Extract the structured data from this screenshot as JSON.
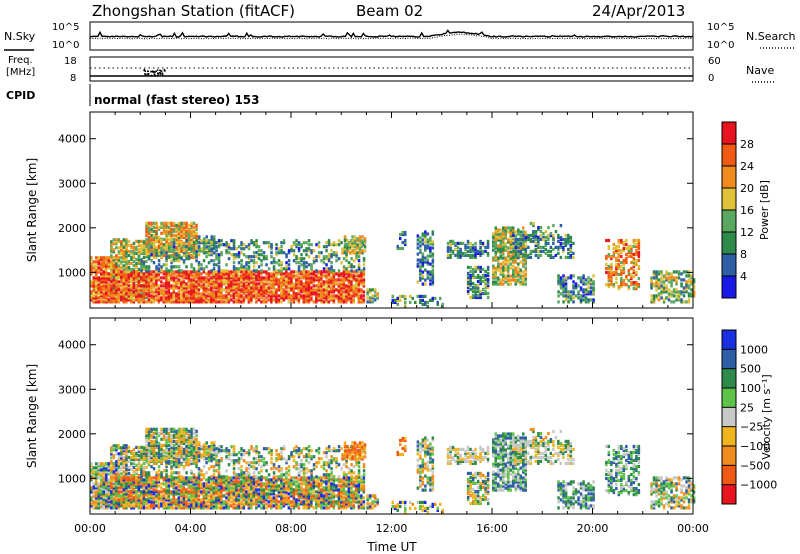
{
  "header": {
    "station": "Zhongshan Station (fitACF)",
    "beam": "Beam 02",
    "date": "24/Apr/2013"
  },
  "noise_panel": {
    "left_label": "N.Sky",
    "right_label": "N.Search",
    "left_top_tick": "10^5",
    "left_bottom_tick": "10^0",
    "right_top_tick": "10^5",
    "right_bottom_tick": "10^0"
  },
  "freq_panel": {
    "left_label_line1": "Freq.",
    "left_label_line2": "[MHz]",
    "right_label": "Nave",
    "left_top_tick": "18",
    "left_bottom_tick": "8",
    "right_top_tick": "60",
    "right_bottom_tick": "0"
  },
  "cpid_panel": {
    "label": "CPID",
    "text": "normal (fast stereo) 153"
  },
  "colors": {
    "blue": "#1a2fe0",
    "teal_blue": "#2e5fa6",
    "green_dark": "#2e8a4a",
    "green": "#5aa860",
    "yellow": "#e0c23a",
    "orange": "#f08c1e",
    "orange_red": "#f05a14",
    "red": "#e8141e",
    "gray": "#bdbdbd"
  },
  "chart_data": [
    {
      "type": "heatmap",
      "name": "power",
      "ylabel": "Slant Range [km]",
      "yticks": [
        1000,
        2000,
        3000,
        4000
      ],
      "ylim": [
        200,
        4600
      ],
      "xlim_hours": [
        0,
        24
      ],
      "colorbar": {
        "label": "Power [dB]",
        "ticks": [
          "4",
          "8",
          "12",
          "16",
          "20",
          "24",
          "28"
        ],
        "palette": [
          "#1a1ae8",
          "#2e5fa6",
          "#2e8a4a",
          "#5aa860",
          "#e0c23a",
          "#f08c1e",
          "#f05a14",
          "#e8141e"
        ]
      }
    },
    {
      "type": "heatmap",
      "name": "velocity",
      "ylabel": "Slant Range [km]",
      "yticks": [
        1000,
        2000,
        3000,
        4000
      ],
      "ylim": [
        200,
        4600
      ],
      "xlim_hours": [
        0,
        24
      ],
      "xlabel": "Time UT",
      "xticks": [
        "00:00",
        "04:00",
        "08:00",
        "12:00",
        "16:00",
        "20:00",
        "00:00"
      ],
      "colorbar": {
        "label": "Velocity [m s⁻¹]",
        "ticks": [
          "1000",
          "500",
          "100",
          "25",
          "−25",
          "−100",
          "−500",
          "−1000"
        ],
        "palette": [
          "#1a2fe0",
          "#2e5fa6",
          "#2e8a4a",
          "#5fc24a",
          "#c8c8c8",
          "#f0b41e",
          "#f08c1e",
          "#f05a14",
          "#e8141e"
        ]
      }
    }
  ]
}
